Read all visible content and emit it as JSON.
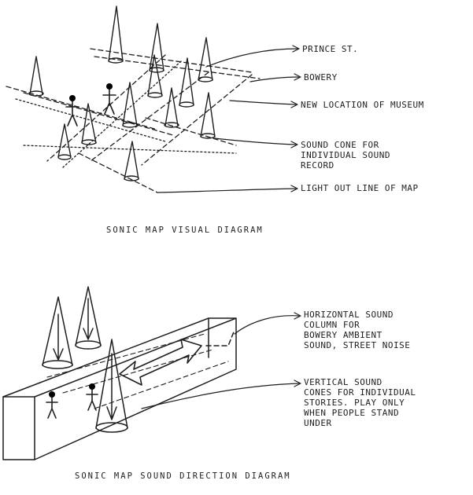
{
  "diagram_top": {
    "labels": {
      "prince_st": "PRINCE ST.",
      "bowery": "BOWERY",
      "new_location": "NEW LOCATION OF MUSEUM",
      "sound_cone": "SOUND CONE FOR\nINDIVIDUAL SOUND\nRECORD",
      "light_outline": "LIGHT OUT LINE OF MAP"
    },
    "caption": "SONIC MAP VISUAL DIAGRAM"
  },
  "diagram_bottom": {
    "labels": {
      "horizontal_column": "HORIZONTAL SOUND\nCOLUMN FOR\nBOWERY AMBIENT\nSOUND, STREET NOISE",
      "vertical_cones": "VERTICAL SOUND\nCONES FOR INDIVIDUAL\nSTORIES. PLAY ONLY\nWHEN PEOPLE STAND\nUNDER"
    },
    "caption": "SONIC MAP SOUND DIRECTION DIAGRAM"
  }
}
